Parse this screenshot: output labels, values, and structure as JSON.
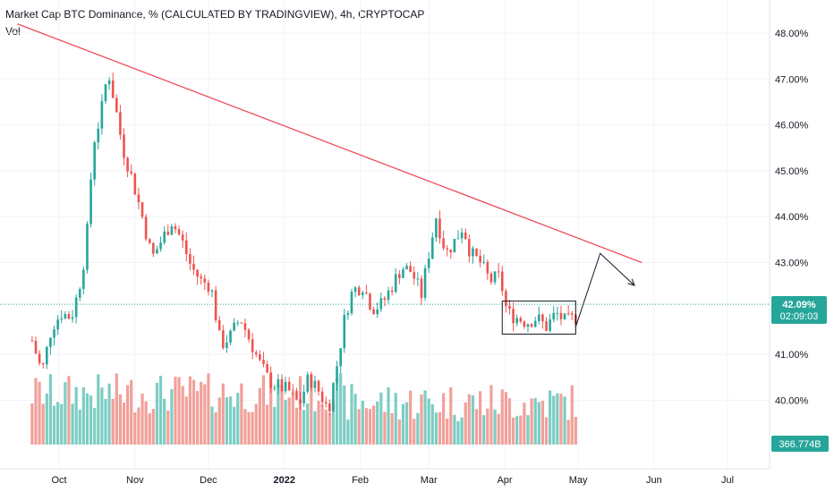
{
  "header": {
    "title": "Market Cap BTC Dominance, % (CALCULATED BY TRADINGVIEW), 4h, CRYPTOCAP",
    "vol_label": "Vol"
  },
  "price_badge": {
    "value": "42.09%",
    "countdown": "02:09:03"
  },
  "volume_badge": {
    "value": "366.774B"
  },
  "colors": {
    "up": "#26a69a",
    "down": "#ef5350",
    "trendline": "#ef4c5c",
    "badge_price": "#26a69a",
    "badge_volume": "#26a69a",
    "axis_text": "#131722",
    "grid": "#f0f3fa"
  },
  "chart_data": {
    "type": "candlestick",
    "interval": "4h",
    "y_axis": {
      "ticks": [
        "48.00%",
        "47.00%",
        "46.00%",
        "45.00%",
        "44.00%",
        "43.00%",
        "41.00%",
        "40.00%"
      ],
      "range": [
        39.1,
        48.4
      ]
    },
    "x_axis": {
      "ticks": [
        "Oct",
        "Nov",
        "Dec",
        "2022",
        "Feb",
        "Mar",
        "Apr",
        "May",
        "Jun",
        "Jul"
      ]
    },
    "last_price": 42.09,
    "price_path": [
      [
        "2021-09-20",
        41.3
      ],
      [
        "2021-09-24",
        40.6
      ],
      [
        "2021-09-28",
        41.6
      ],
      [
        "2021-10-02",
        41.9
      ],
      [
        "2021-10-06",
        41.8
      ],
      [
        "2021-10-09",
        42.4
      ],
      [
        "2021-10-12",
        43.3
      ],
      [
        "2021-10-15",
        45.6
      ],
      [
        "2021-10-18",
        46.2
      ],
      [
        "2021-10-21",
        47.2
      ],
      [
        "2021-10-24",
        46.4
      ],
      [
        "2021-10-27",
        45.5
      ],
      [
        "2021-10-31",
        44.8
      ],
      [
        "2021-11-04",
        44.0
      ],
      [
        "2021-11-08",
        43.1
      ],
      [
        "2021-11-12",
        43.5
      ],
      [
        "2021-11-16",
        43.9
      ],
      [
        "2021-11-20",
        43.5
      ],
      [
        "2021-11-24",
        42.9
      ],
      [
        "2021-11-28",
        42.6
      ],
      [
        "2021-12-02",
        42.5
      ],
      [
        "2021-12-06",
        41.2
      ],
      [
        "2021-12-10",
        41.4
      ],
      [
        "2021-12-14",
        41.8
      ],
      [
        "2021-12-18",
        41.3
      ],
      [
        "2021-12-22",
        40.8
      ],
      [
        "2021-12-26",
        40.4
      ],
      [
        "2021-12-30",
        40.3
      ],
      [
        "2022-01-03",
        40.2
      ],
      [
        "2022-01-07",
        39.9
      ],
      [
        "2022-01-11",
        40.5
      ],
      [
        "2022-01-15",
        40.2
      ],
      [
        "2022-01-19",
        39.8
      ],
      [
        "2022-01-22",
        40.6
      ],
      [
        "2022-01-26",
        41.9
      ],
      [
        "2022-01-29",
        42.4
      ],
      [
        "2022-02-02",
        42.5
      ],
      [
        "2022-02-06",
        42.0
      ],
      [
        "2022-02-10",
        42.1
      ],
      [
        "2022-02-14",
        42.5
      ],
      [
        "2022-02-18",
        42.9
      ],
      [
        "2022-02-22",
        42.8
      ],
      [
        "2022-02-26",
        42.3
      ],
      [
        "2022-03-01",
        43.2
      ],
      [
        "2022-03-04",
        44.0
      ],
      [
        "2022-03-08",
        43.2
      ],
      [
        "2022-03-12",
        43.5
      ],
      [
        "2022-03-15",
        43.8
      ],
      [
        "2022-03-18",
        43.2
      ],
      [
        "2022-03-22",
        43.0
      ],
      [
        "2022-03-26",
        42.6
      ],
      [
        "2022-03-30",
        42.7
      ],
      [
        "2022-04-02",
        41.9
      ],
      [
        "2022-04-06",
        41.8
      ],
      [
        "2022-04-10",
        41.7
      ],
      [
        "2022-04-14",
        41.8
      ],
      [
        "2022-04-18",
        41.6
      ],
      [
        "2022-04-22",
        41.9
      ],
      [
        "2022-04-26",
        41.7
      ],
      [
        "2022-04-30",
        41.8
      ]
    ],
    "annotations": {
      "trendline": {
        "from": [
          "2021-09-14",
          48.2
        ],
        "to": [
          "2022-05-27",
          43.0
        ]
      },
      "range_box": {
        "from": "2022-03-31",
        "to": "2022-04-30",
        "top": 42.16,
        "bottom": 41.44
      },
      "projection": [
        [
          "2022-04-30",
          41.6
        ],
        [
          "2022-05-10",
          43.2
        ],
        [
          "2022-05-24",
          42.5
        ]
      ]
    }
  }
}
